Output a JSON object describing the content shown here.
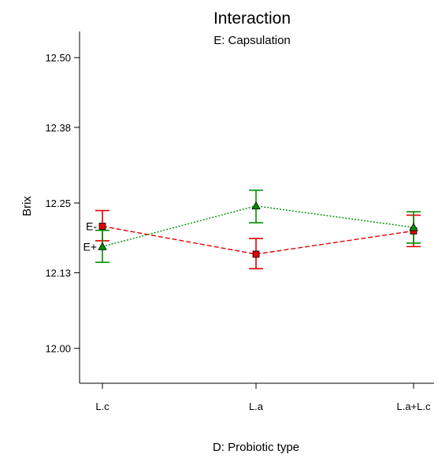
{
  "chart_data": {
    "type": "line",
    "title": "Interaction",
    "subtitle": "E: Capsulation",
    "xlabel": "D: Probiotic type",
    "ylabel": "Brix",
    "categories": [
      "L.c",
      "L.a",
      "L.a+L.c"
    ],
    "y_ticks": [
      "12.00",
      "12.13",
      "12.25",
      "12.38",
      "12.50"
    ],
    "ylim": [
      11.94,
      12.545
    ],
    "grid": false,
    "series": [
      {
        "name": "E-",
        "color": "#e00000",
        "marker": "square",
        "line_style": "dashed",
        "values": [
          12.21,
          12.162,
          12.202
        ],
        "err_low": [
          12.185,
          12.137,
          12.175
        ],
        "err_high": [
          12.237,
          12.189,
          12.229
        ]
      },
      {
        "name": "E+",
        "color": "#009000",
        "marker": "triangle",
        "line_style": "dotted",
        "values": [
          12.175,
          12.245,
          12.208
        ],
        "err_low": [
          12.148,
          12.216,
          12.181
        ],
        "err_high": [
          12.203,
          12.272,
          12.235
        ]
      }
    ]
  }
}
